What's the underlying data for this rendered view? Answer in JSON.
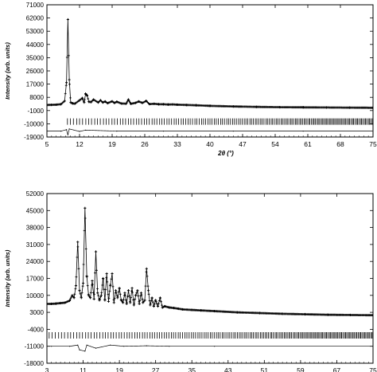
{
  "chart_data": [
    {
      "type": "line",
      "title": "",
      "xlabel": "2θ (°)",
      "ylabel": "Intensity (arb. units)",
      "xlim": [
        5,
        75
      ],
      "ylim": [
        -19000,
        71000
      ],
      "x_ticks": [
        "5",
        "12",
        "19",
        "26",
        "33",
        "40",
        "47",
        "54",
        "61",
        "68",
        "75"
      ],
      "y_ticks": [
        "-19000",
        "-10000",
        "-1000",
        "8000",
        "17000",
        "26000",
        "35000",
        "44000",
        "53000",
        "62000",
        "71000"
      ],
      "grid": false,
      "legend": "none",
      "series": [
        {
          "kind": "observed",
          "style": "cross-markers",
          "x": [
            5,
            6,
            7,
            8,
            8.8,
            9.2,
            9.5,
            9.8,
            10.1,
            10.5,
            11,
            12,
            12.6,
            13,
            13.3,
            13.6,
            14,
            14.5,
            15,
            16,
            16.5,
            17,
            17.5,
            18,
            19,
            19.5,
            20,
            21,
            22,
            22.5,
            23,
            24,
            24.7,
            25.5,
            26.3,
            27,
            28,
            29,
            30,
            31,
            32,
            33,
            35,
            37,
            40,
            45,
            50,
            55,
            60,
            65,
            70,
            75
          ],
          "y": [
            2800,
            2900,
            3000,
            3300,
            5500,
            18000,
            61000,
            20000,
            4500,
            3900,
            3700,
            6000,
            7500,
            4500,
            10500,
            9500,
            5000,
            4800,
            6500,
            4500,
            6000,
            4500,
            5200,
            4000,
            5300,
            4200,
            5000,
            3800,
            3700,
            6500,
            3600,
            4200,
            5200,
            4200,
            5600,
            3400,
            3600,
            3300,
            3300,
            3100,
            3200,
            3000,
            2800,
            2600,
            2200,
            1800,
            1500,
            1300,
            1200,
            1100,
            1000,
            900
          ]
        },
        {
          "kind": "difference",
          "style": "line",
          "x": [
            5,
            8,
            9.2,
            9.5,
            9.8,
            12,
            13.3,
            20,
            30,
            45,
            60,
            75
          ],
          "y": [
            -15000,
            -15000,
            -14000,
            -17500,
            -13500,
            -15200,
            -14300,
            -15000,
            -15000,
            -15000,
            -15000,
            -15000
          ]
        }
      ],
      "reflection_marker_y": -8500
    },
    {
      "type": "line",
      "title": "",
      "xlabel": "2θ (°)",
      "ylabel": "Intensity (arb. units)",
      "xlim": [
        3,
        75
      ],
      "ylim": [
        -18000,
        52000
      ],
      "x_ticks": [
        "3",
        "11",
        "19",
        "27",
        "35",
        "43",
        "51",
        "59",
        "67",
        "75"
      ],
      "y_ticks": [
        "-18000",
        "-11000",
        "-4000",
        "3000",
        "10000",
        "17000",
        "24000",
        "31000",
        "38000",
        "45000",
        "52000"
      ],
      "grid": false,
      "legend": "none",
      "series": [
        {
          "kind": "observed",
          "style": "cross-markers",
          "x": [
            4,
            5,
            6,
            7,
            8,
            8.6,
            9,
            9.4,
            9.8,
            10.2,
            10.6,
            11,
            11.4,
            11.8,
            12.2,
            12.6,
            13,
            13.4,
            13.8,
            14.2,
            14.6,
            15,
            15.4,
            15.8,
            16.2,
            16.6,
            17,
            17.4,
            17.8,
            18.2,
            18.6,
            19,
            19.4,
            19.8,
            20.2,
            20.6,
            21,
            21.4,
            21.8,
            22.2,
            22.6,
            23,
            23.4,
            23.8,
            24.2,
            24.6,
            25,
            25.4,
            25.8,
            26.2,
            26.6,
            27,
            27.5,
            28,
            28.5,
            29,
            30,
            31,
            32,
            33,
            35,
            37,
            40,
            45,
            50,
            55,
            60,
            65,
            70,
            75
          ],
          "y": [
            6500,
            6600,
            6800,
            7000,
            7800,
            10000,
            9000,
            14000,
            32000,
            12000,
            9000,
            15000,
            46000,
            18000,
            10000,
            9000,
            16000,
            8500,
            28000,
            11000,
            8000,
            10000,
            17000,
            8000,
            19000,
            7500,
            14000,
            19000,
            7000,
            12000,
            9000,
            13000,
            8000,
            7000,
            11000,
            6500,
            12000,
            7000,
            13000,
            6000,
            10000,
            12000,
            6500,
            11000,
            7000,
            8000,
            21000,
            12000,
            6000,
            9000,
            5500,
            8000,
            5500,
            9000,
            5000,
            5500,
            5000,
            4800,
            4500,
            4200,
            4000,
            3800,
            3500,
            3000,
            2700,
            2400,
            2200,
            2000,
            1900,
            1800
          ]
        },
        {
          "kind": "difference",
          "style": "line",
          "x": [
            4,
            8,
            9.8,
            10.2,
            11.4,
            11.8,
            13.8,
            17,
            20,
            25,
            30,
            40,
            75
          ],
          "y": [
            -11000,
            -11000,
            -10500,
            -12500,
            -13000,
            -10500,
            -11800,
            -10500,
            -11000,
            -10800,
            -11000,
            -11000,
            -11000
          ]
        }
      ],
      "reflection_marker_y": -6500
    }
  ]
}
